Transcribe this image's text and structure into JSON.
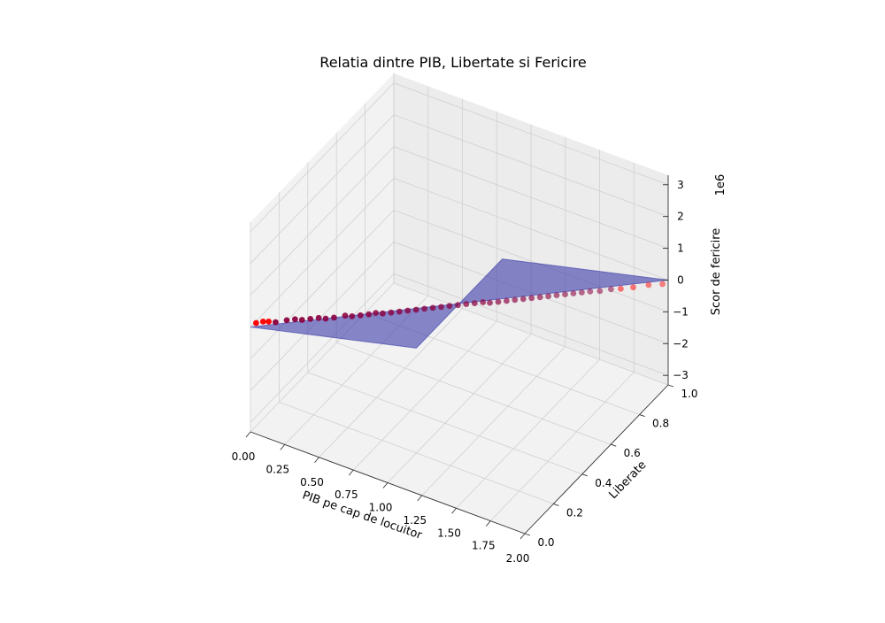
{
  "chart_data": {
    "type": "scatter",
    "projection": "3d",
    "title": "Relatia dintre PIB, Libertate si Fericire",
    "xlabel": "PIB pe cap de locuitor",
    "ylabel": "Liberate",
    "zlabel": "Scor de fericire",
    "z_offset_label": "1e6",
    "xlim": [
      0.0,
      2.0
    ],
    "ylim": [
      0.0,
      1.0
    ],
    "zlim": [
      -3.3,
      3.3
    ],
    "x_ticks": [
      "0.00",
      "0.25",
      "0.50",
      "0.75",
      "1.00",
      "1.25",
      "1.50",
      "1.75",
      "2.00"
    ],
    "y_ticks": [
      "0.0",
      "0.2",
      "0.4",
      "0.6",
      "0.8",
      "1.0"
    ],
    "z_ticks": [
      "−3",
      "−2",
      "−1",
      "0",
      "1",
      "2",
      "3"
    ],
    "grid": true,
    "colors": {
      "points": "#ff0000",
      "plane": "#3a3aa8",
      "pane": "#f2f2f2",
      "grid": "#d0d0d0"
    },
    "series": [
      {
        "type": "scatter",
        "points": [
          [
            0.01,
            0.03,
            0.0
          ],
          [
            0.04,
            0.05,
            0.0
          ],
          [
            0.07,
            0.06,
            0.0
          ],
          [
            0.11,
            0.07,
            0.0
          ],
          [
            0.16,
            0.1,
            0.0
          ],
          [
            0.2,
            0.12,
            0.0
          ],
          [
            0.24,
            0.13,
            0.0
          ],
          [
            0.28,
            0.15,
            0.0
          ],
          [
            0.32,
            0.17,
            0.0
          ],
          [
            0.36,
            0.18,
            0.0
          ],
          [
            0.4,
            0.2,
            0.0
          ],
          [
            0.45,
            0.23,
            0.0
          ],
          [
            0.49,
            0.24,
            0.0
          ],
          [
            0.53,
            0.26,
            0.0
          ],
          [
            0.57,
            0.28,
            0.0
          ],
          [
            0.6,
            0.3,
            0.0
          ],
          [
            0.64,
            0.31,
            0.0
          ],
          [
            0.68,
            0.33,
            0.0
          ],
          [
            0.72,
            0.35,
            0.0
          ],
          [
            0.76,
            0.37,
            0.0
          ],
          [
            0.8,
            0.39,
            0.0
          ],
          [
            0.84,
            0.41,
            0.0
          ],
          [
            0.88,
            0.43,
            0.0
          ],
          [
            0.92,
            0.45,
            0.0
          ],
          [
            0.96,
            0.47,
            0.0
          ],
          [
            1.0,
            0.49,
            0.0
          ],
          [
            1.04,
            0.51,
            0.0
          ],
          [
            1.08,
            0.53,
            0.0
          ],
          [
            1.12,
            0.55,
            0.0
          ],
          [
            1.16,
            0.56,
            0.0
          ],
          [
            1.2,
            0.58,
            0.0
          ],
          [
            1.24,
            0.6,
            0.0
          ],
          [
            1.28,
            0.62,
            0.0
          ],
          [
            1.32,
            0.64,
            0.0
          ],
          [
            1.36,
            0.66,
            0.0
          ],
          [
            1.4,
            0.68,
            0.0
          ],
          [
            1.44,
            0.7,
            0.0
          ],
          [
            1.48,
            0.72,
            0.0
          ],
          [
            1.52,
            0.74,
            0.0
          ],
          [
            1.56,
            0.76,
            0.0
          ],
          [
            1.6,
            0.78,
            0.0
          ],
          [
            1.64,
            0.8,
            0.0
          ],
          [
            1.69,
            0.82,
            0.0
          ],
          [
            1.74,
            0.85,
            0.0
          ],
          [
            1.79,
            0.87,
            0.0
          ],
          [
            1.85,
            0.9,
            0.0
          ],
          [
            1.92,
            0.94,
            0.0
          ],
          [
            1.99,
            0.97,
            0.0
          ]
        ]
      },
      {
        "type": "surface",
        "corners": [
          [
            0.0,
            0.0,
            0.0
          ],
          [
            2.0,
            1.0,
            0.0
          ],
          [
            1.0,
            0.8,
            0.0
          ],
          [
            1.0,
            0.2,
            0.0
          ]
        ]
      }
    ]
  }
}
